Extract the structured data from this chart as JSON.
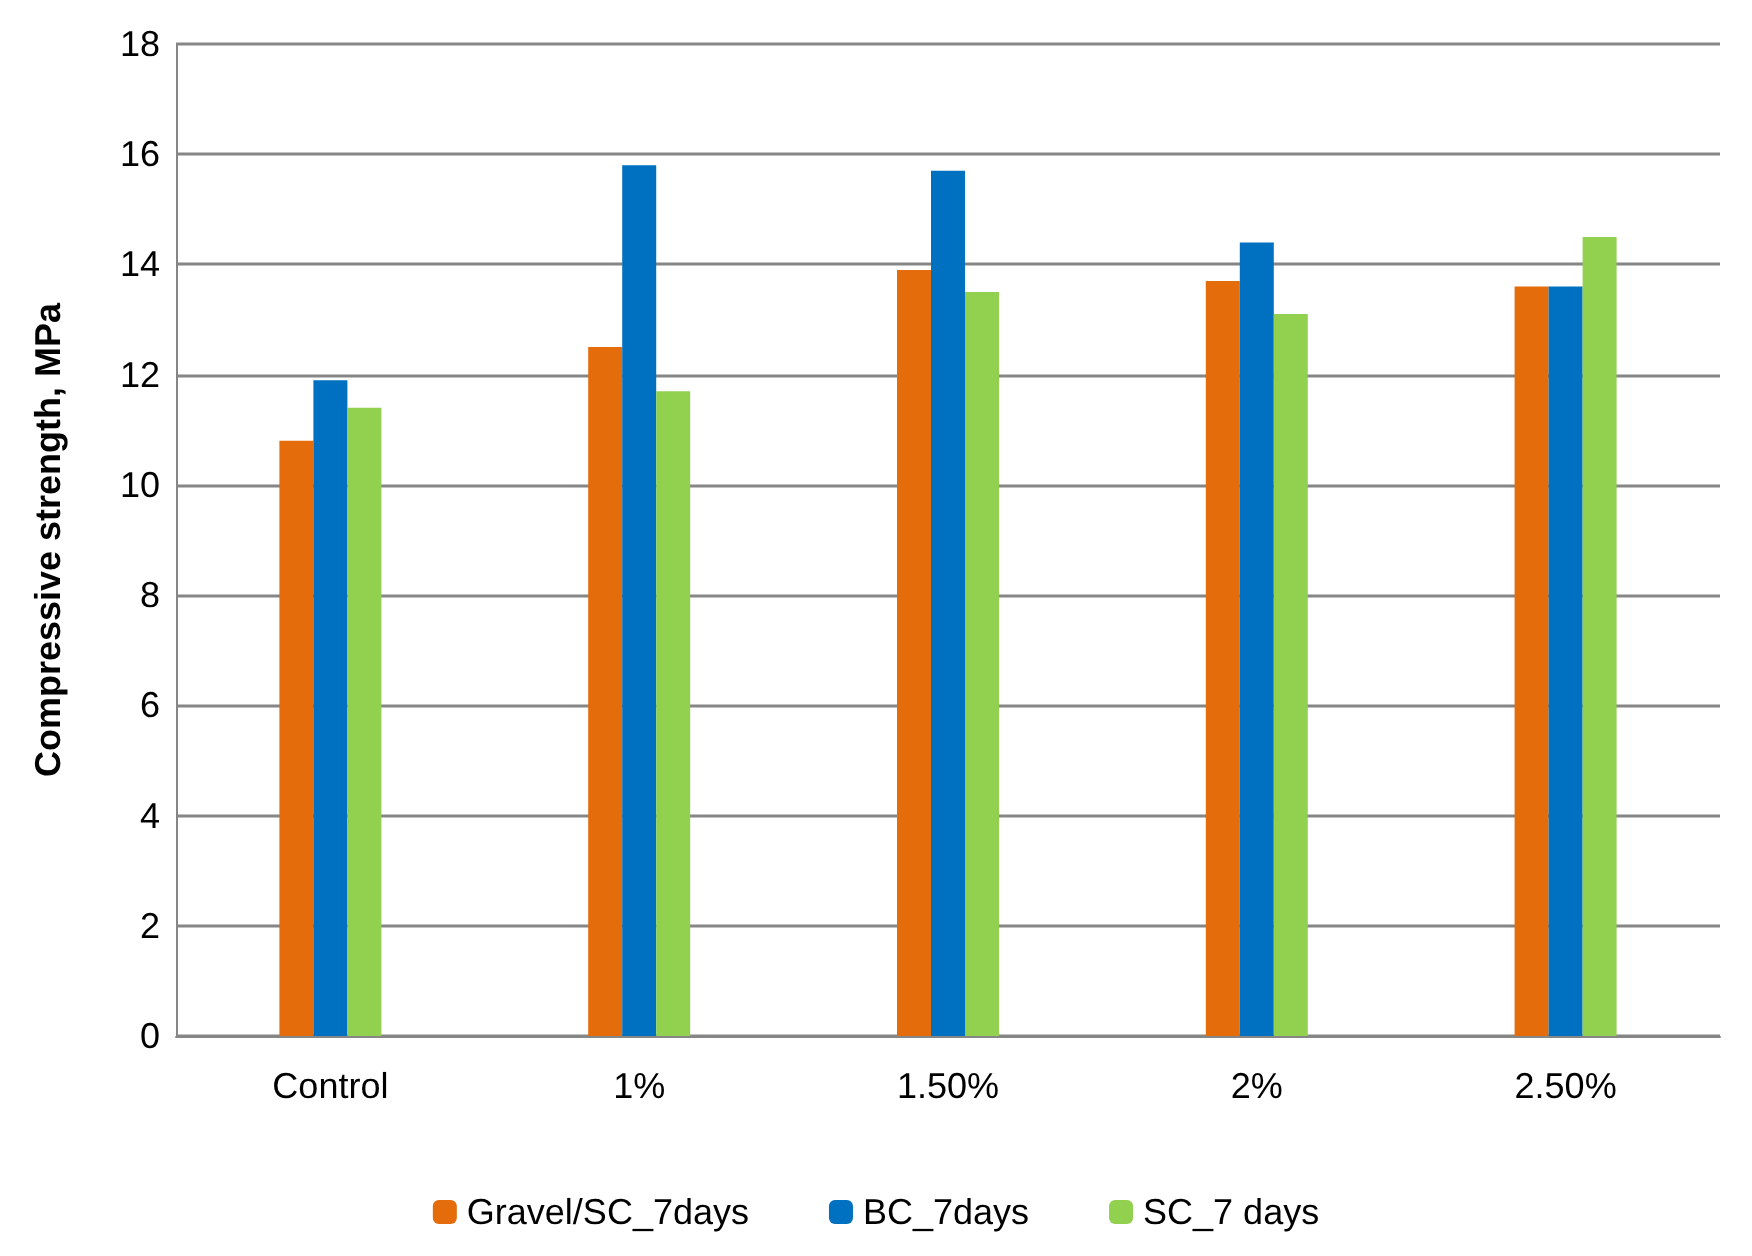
{
  "chart_data": {
    "type": "bar",
    "ylabel": "Compressive strength, MPa",
    "categories": [
      "Control",
      "1%",
      "1.50%",
      "2%",
      "2.50%"
    ],
    "series": [
      {
        "name": "Gravel/SC_7days",
        "color": "#e46c0a",
        "values": [
          10.8,
          12.5,
          13.9,
          13.7,
          13.6
        ]
      },
      {
        "name": "BC_7days",
        "color": "#0070c0",
        "values": [
          11.9,
          15.8,
          15.7,
          14.4,
          13.6
        ]
      },
      {
        "name": "SC_7 days",
        "color": "#92d050",
        "values": [
          11.4,
          11.7,
          13.5,
          13.1,
          14.5
        ]
      }
    ],
    "ylim": [
      0,
      18
    ],
    "yticks": [
      0,
      2,
      4,
      6,
      8,
      10,
      12,
      14,
      16,
      18
    ],
    "grid": "y",
    "legend": "bottom"
  }
}
